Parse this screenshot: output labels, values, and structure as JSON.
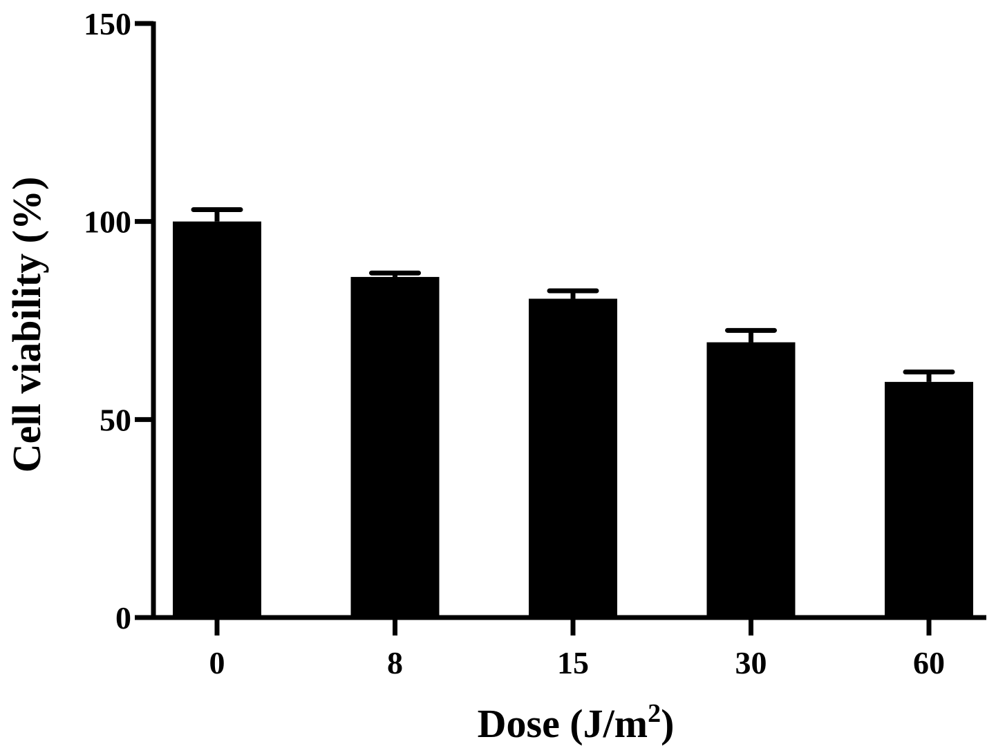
{
  "chart_data": {
    "type": "bar",
    "categories": [
      "0",
      "8",
      "15",
      "30",
      "60"
    ],
    "values": [
      100,
      86,
      80.5,
      69.5,
      59.5
    ],
    "error": [
      3,
      1,
      2,
      3,
      2.5
    ],
    "xlabel": "Dose (J/m",
    "xlabel_superscript": "2",
    "xlabel_suffix": ")",
    "ylabel": "Cell viability (%)",
    "ylim": [
      0,
      150
    ],
    "yticks": [
      0,
      50,
      100,
      150
    ],
    "grid": false,
    "bar_color": "#000000"
  }
}
